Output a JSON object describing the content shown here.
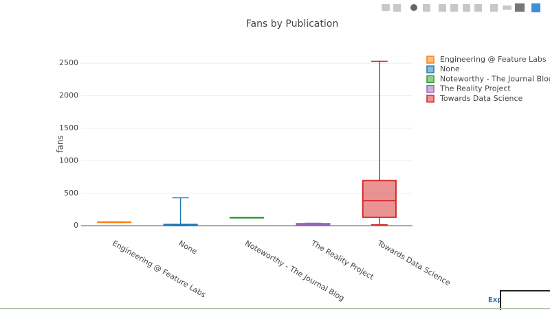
{
  "chart_data": {
    "type": "box",
    "title": "Fans by Publication",
    "y_label": "fans",
    "categories": [
      "Engineering @ Feature Labs",
      "None",
      "Noteworthy - The Journal Blog",
      "The Reality Project",
      "Towards Data Science"
    ],
    "colors": [
      "#ff7f0e",
      "#1f77b4",
      "#2ca02c",
      "#9467bd",
      "#d62728"
    ],
    "min": [
      50,
      0,
      127,
      10,
      15
    ],
    "q1": [
      52,
      5,
      127,
      18,
      130
    ],
    "median": [
      55,
      10,
      127,
      25,
      385
    ],
    "q3": [
      57,
      20,
      127,
      32,
      695
    ],
    "max": [
      60,
      430,
      127,
      38,
      2530
    ],
    "ylim": [
      -30,
      2650
    ],
    "yticks": [
      0,
      500,
      1000,
      1500,
      2000,
      2500
    ],
    "grid": true
  },
  "export_link": "Exp"
}
